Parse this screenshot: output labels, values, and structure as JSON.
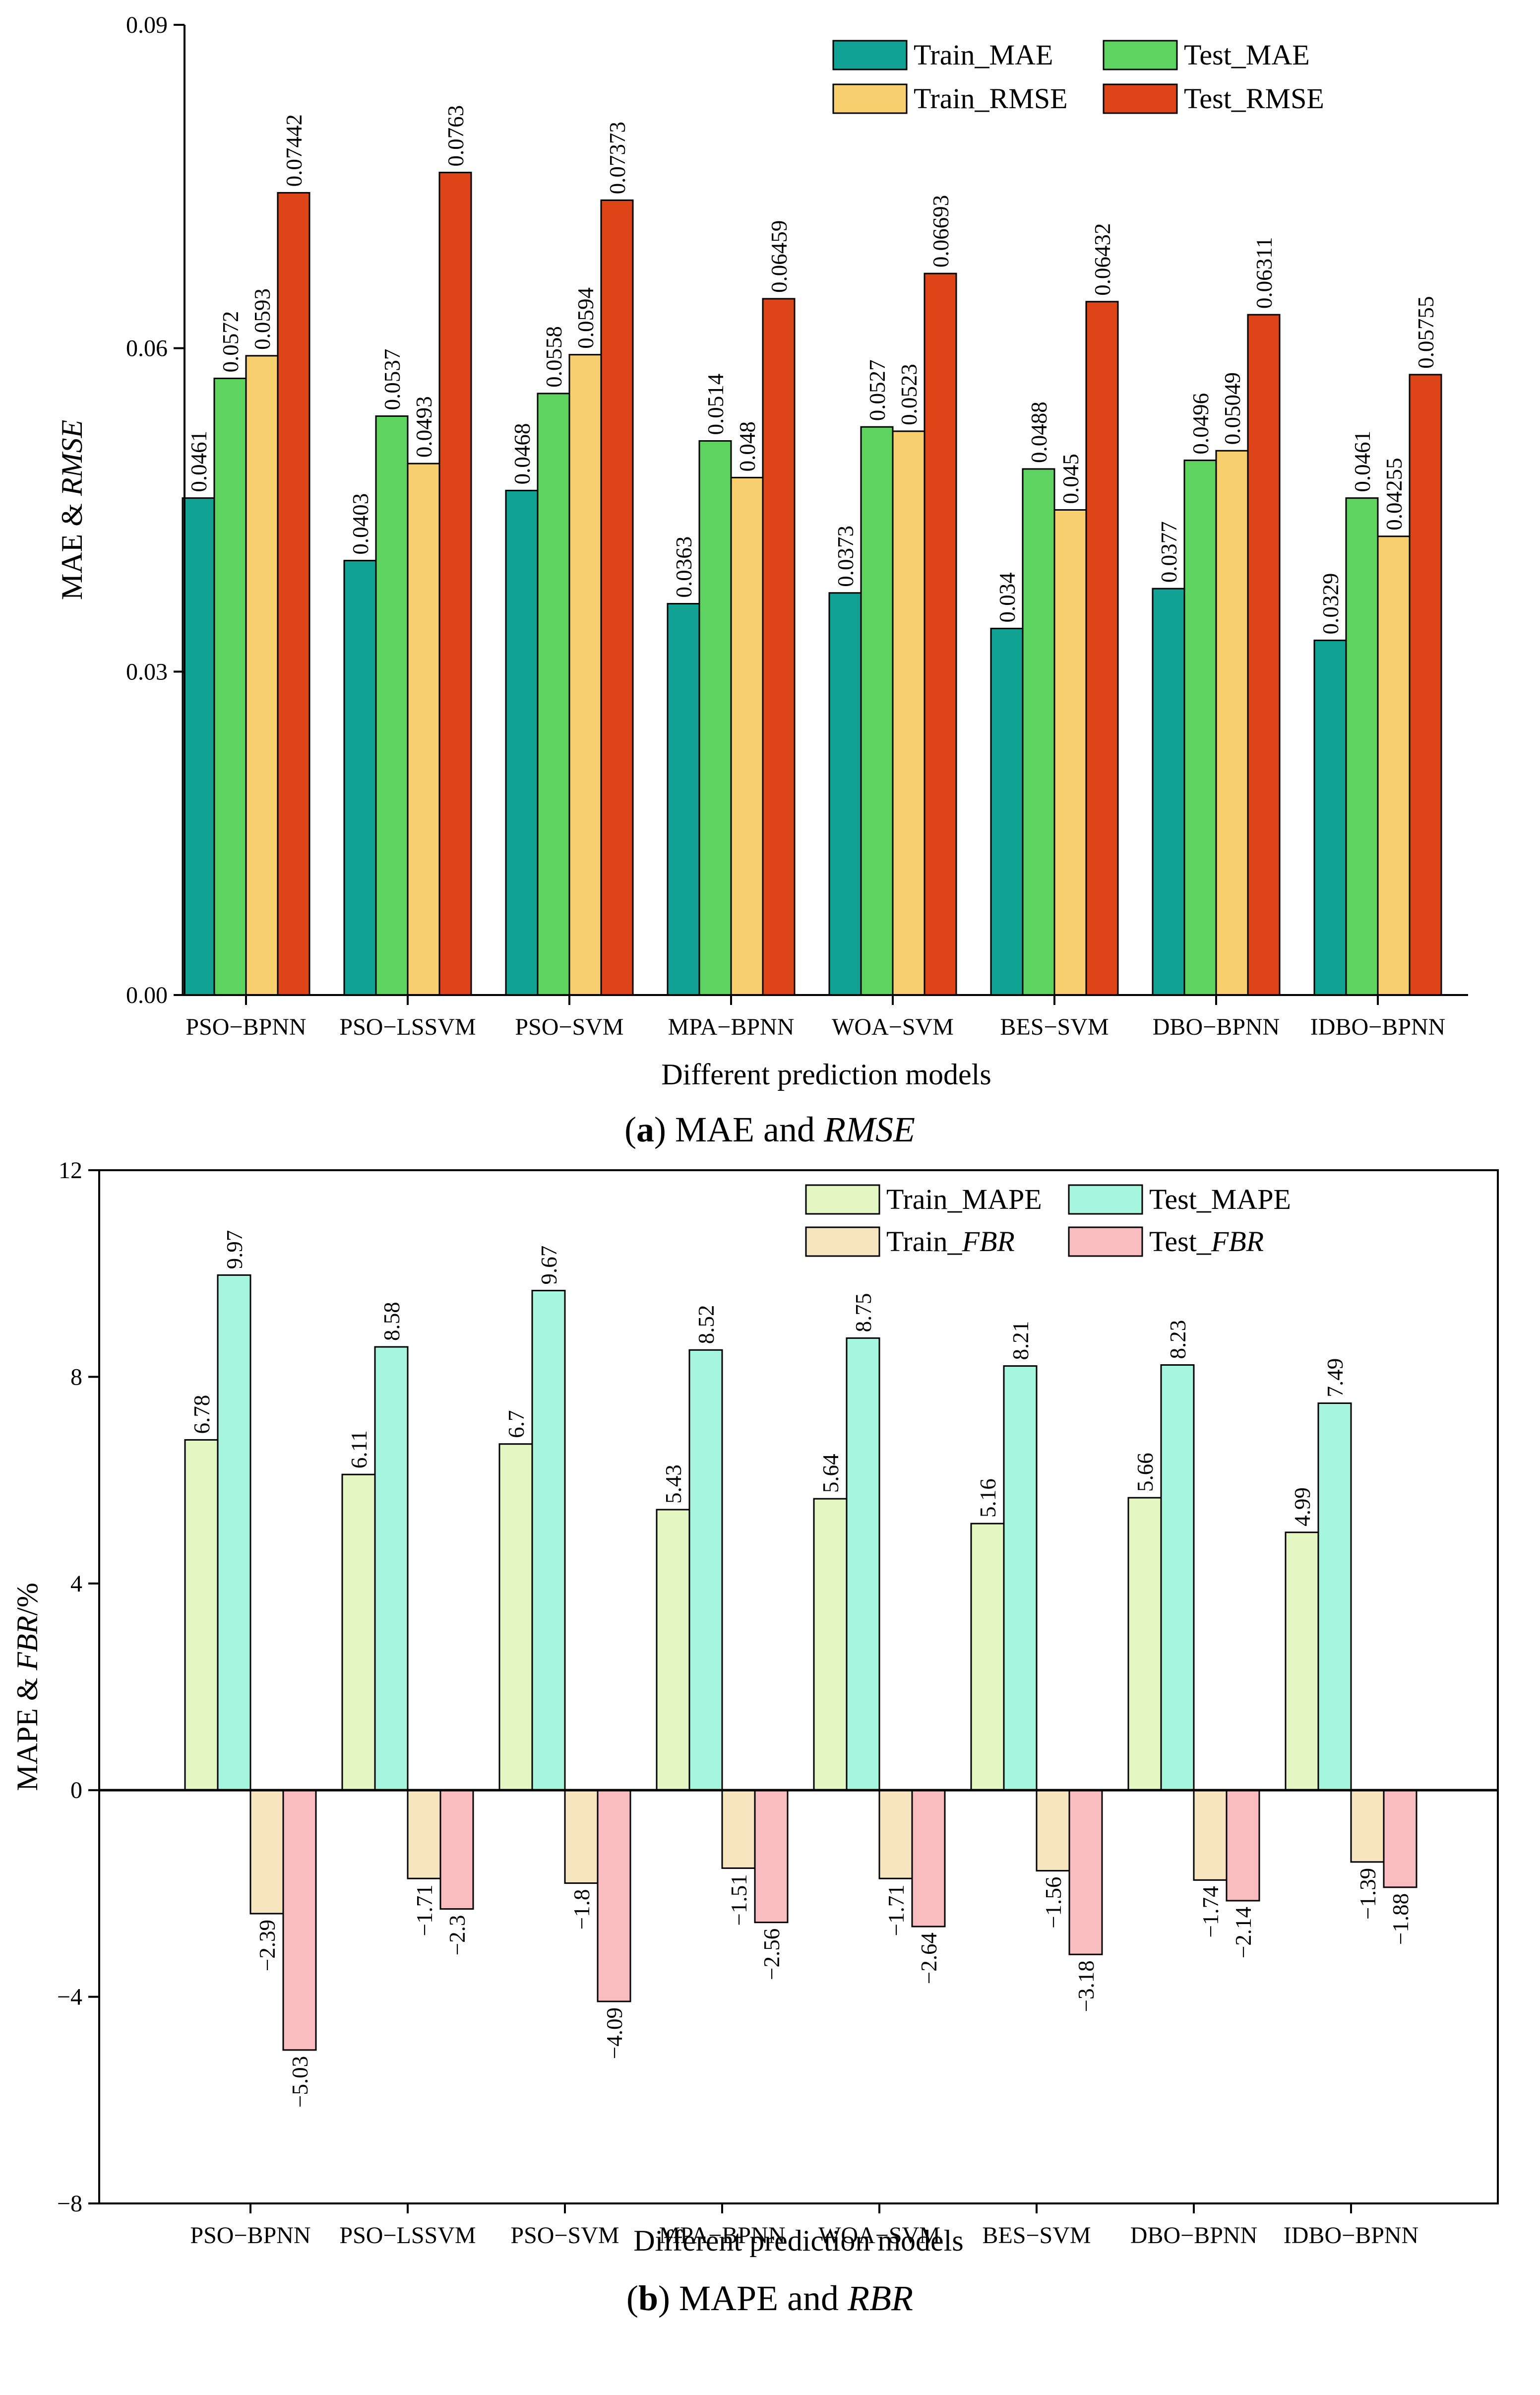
{
  "chart_data": [
    {
      "type": "bar",
      "caption": {
        "letter": "a",
        "open": "(",
        "close": ")",
        "text": " MAE and ",
        "italic": "RMSE"
      },
      "xlabel": "Different prediction models",
      "ylabel": {
        "plain": "MAE & ",
        "italic": "RMSE"
      },
      "ylim": [
        0,
        0.09
      ],
      "yticks": [
        "0.00",
        "0.03",
        "0.06",
        "0.09"
      ],
      "categories": [
        "PSO−BPNN",
        "PSO−LSSVM",
        "PSO−SVM",
        "MPA−BPNN",
        "WOA−SVM",
        "BES−SVM",
        "DBO−BPNN",
        "IDBO−BPNN"
      ],
      "series": [
        {
          "name": "Train_MAE",
          "color": "#12a293",
          "values": [
            0.0461,
            0.0403,
            0.0468,
            0.0363,
            0.0373,
            0.034,
            0.0377,
            0.0329
          ],
          "labels": [
            "0.0461",
            "0.0403",
            "0.0468",
            "0.0363",
            "0.0373",
            "0.034",
            "0.0377",
            "0.0329"
          ]
        },
        {
          "name": "Test_MAE",
          "color": "#5fd35f",
          "values": [
            0.0572,
            0.0537,
            0.0558,
            0.0514,
            0.0527,
            0.0488,
            0.0496,
            0.0461
          ],
          "labels": [
            "0.0572",
            "0.0537",
            "0.0558",
            "0.0514",
            "0.0527",
            "0.0488",
            "0.0496",
            "0.0461"
          ]
        },
        {
          "name": "Train_RMSE",
          "color": "#f8cf6e",
          "values": [
            0.0593,
            0.0493,
            0.0594,
            0.048,
            0.0523,
            0.045,
            0.05049,
            0.04255
          ],
          "labels": [
            "0.0593",
            "0.0493",
            "0.0594",
            "0.048",
            "0.0523",
            "0.045",
            "0.05049",
            "0.04255"
          ]
        },
        {
          "name": "Test_RMSE",
          "color": "#dd4418",
          "values": [
            0.07442,
            0.0763,
            0.07373,
            0.06459,
            0.06693,
            0.06432,
            0.06311,
            0.05755
          ],
          "labels": [
            "0.07442",
            "0.0763",
            "0.07373",
            "0.06459",
            "0.06693",
            "0.06432",
            "0.06311",
            "0.05755"
          ]
        }
      ],
      "legend": {
        "position": "top-right",
        "columns": 2,
        "rows": [
          [
            "Train_MAE",
            "Test_MAE"
          ],
          [
            "Train_RMSE",
            "Test_RMSE"
          ]
        ]
      }
    },
    {
      "type": "bar",
      "caption": {
        "letter": "b",
        "open": "(",
        "close": ")",
        "text": " MAPE and ",
        "italic": "RBR"
      },
      "xlabel": "Different prediction models",
      "ylabel": {
        "plain": "MAPE & ",
        "italic": "FBR",
        "suffix": "/%"
      },
      "ylim": [
        -8,
        12
      ],
      "yticks": [
        "−8",
        "−4",
        "0",
        "4",
        "8",
        "12"
      ],
      "categories": [
        "PSO−BPNN",
        "PSO−LSSVM",
        "PSO−SVM",
        "MPA−BPNN",
        "WOA−SVM",
        "BES−SVM",
        "DBO−BPNN",
        "IDBO−BPNN"
      ],
      "series": [
        {
          "name": "Train_MAPE",
          "color": "#e4f7c2",
          "values": [
            6.78,
            6.11,
            6.7,
            5.43,
            5.64,
            5.16,
            5.66,
            4.99
          ],
          "labels": [
            "6.78",
            "6.11",
            "6.7",
            "5.43",
            "5.64",
            "5.16",
            "5.66",
            "4.99"
          ]
        },
        {
          "name": "Test_MAPE",
          "color": "#a6f5de",
          "values": [
            9.97,
            8.58,
            9.67,
            8.52,
            8.75,
            8.21,
            8.23,
            7.49
          ],
          "labels": [
            "9.97",
            "8.58",
            "9.67",
            "8.52",
            "8.75",
            "8.21",
            "8.23",
            "7.49"
          ]
        },
        {
          "name": "Train_FBR",
          "color": "#f7e5c0",
          "values": [
            -2.39,
            -1.71,
            -1.8,
            -1.51,
            -1.71,
            -1.56,
            -1.74,
            -1.39
          ],
          "labels": [
            "−2.39",
            "−1.71",
            "−1.8",
            "−1.51",
            "−1.71",
            "−1.56",
            "−1.74",
            "−1.39"
          ]
        },
        {
          "name": "Test_FBR",
          "color": "#f9bcc0",
          "values": [
            -5.03,
            -2.3,
            -4.09,
            -2.56,
            -2.64,
            -3.18,
            -2.14,
            -1.88
          ],
          "labels": [
            "−5.03",
            "−2.3",
            "−4.09",
            "−2.56",
            "−2.64",
            "−3.18",
            "−2.14",
            "−1.88"
          ]
        }
      ],
      "legend": {
        "position": "top-right",
        "columns": 2,
        "rows": [
          [
            "Train_MAPE",
            "Test_MAPE"
          ],
          [
            "Train_FBR",
            "Test_FBR"
          ]
        ]
      }
    }
  ]
}
